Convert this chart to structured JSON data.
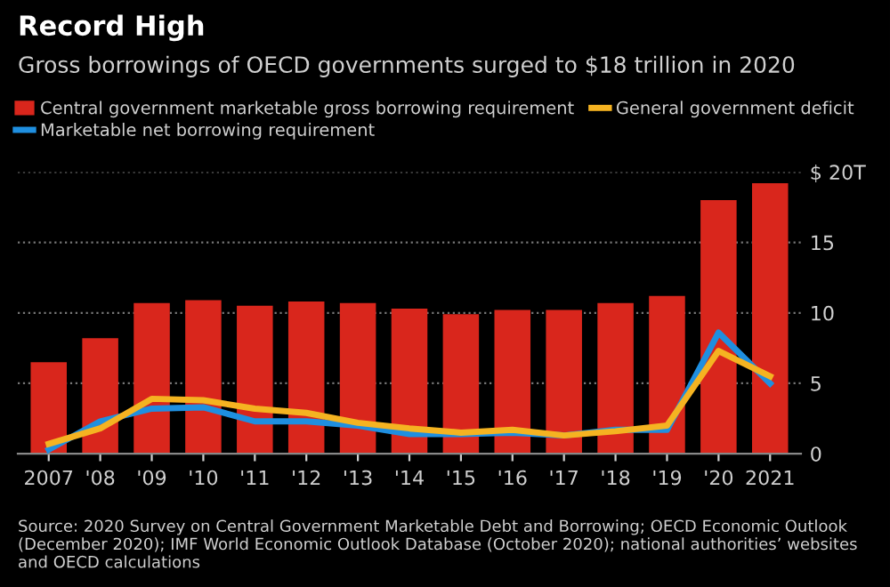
{
  "chart_data": {
    "type": "bar",
    "title": "Record High",
    "subtitle": "Gross borrowings of OECD governments surged to $18 trillion in 2020",
    "categories": [
      "2007",
      "'08",
      "'09",
      "'10",
      "'11",
      "'12",
      "'13",
      "'14",
      "'15",
      "'16",
      "'17",
      "'18",
      "'19",
      "'20",
      "2021"
    ],
    "series": [
      {
        "name": "Central government marketable gross borrowing requirement",
        "color": "#d9261c",
        "values": [
          6.5,
          8.2,
          10.7,
          10.9,
          10.5,
          10.8,
          10.7,
          10.3,
          9.9,
          10.2,
          10.2,
          10.7,
          11.2,
          18.0,
          19.2
        ]
      },
      {
        "name": "Marketable net borrowing requirement",
        "color": "#1f8fe0",
        "type": "line",
        "values": [
          0.3,
          2.3,
          3.2,
          3.3,
          2.3,
          2.3,
          2.0,
          1.4,
          1.4,
          1.5,
          1.3,
          1.7,
          1.7,
          8.6,
          5.0
        ]
      },
      {
        "name": "General government deficit",
        "color": "#f5b321",
        "type": "line",
        "values": [
          0.7,
          1.8,
          3.9,
          3.8,
          3.2,
          2.9,
          2.2,
          1.8,
          1.5,
          1.7,
          1.3,
          1.6,
          2.0,
          7.3,
          5.5
        ]
      }
    ],
    "ylim": [
      0,
      20
    ],
    "yticks": [
      0,
      5,
      10,
      15,
      {
        "value": 20,
        "label": "$ 20T"
      }
    ],
    "grid": "y",
    "legend": "top left",
    "marker": "none",
    "line_style": "solid",
    "annotations": [
      "Source: 2020 Survey on Central Government Marketable Debt and Borrowing; OECD Economic Outlook (December 2020); IMF World Economic Outlook Database (October 2020); national authorities’ websites and OECD calculations"
    ]
  }
}
